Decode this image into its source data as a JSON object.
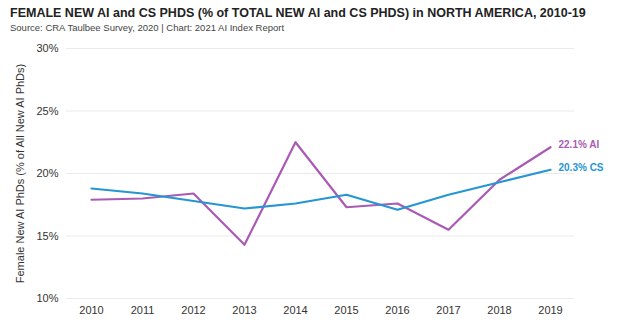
{
  "chart_data": {
    "type": "line",
    "title": "FEMALE NEW AI and CS PHDS (% of TOTAL NEW AI and CS PHDS) in NORTH AMERICA, 2010-19",
    "subtitle": "Source: CRA Taulbee Survey, 2020 | Chart: 2021 AI Index Report",
    "y_label": "Female New AI PhDs (% of All New AI PhDs)",
    "categories": [
      "2010",
      "2011",
      "2012",
      "2013",
      "2014",
      "2015",
      "2016",
      "2017",
      "2018",
      "2019"
    ],
    "series": [
      {
        "name": "AI",
        "color": "#a95bb4",
        "values": [
          17.9,
          18.0,
          18.4,
          14.3,
          22.5,
          17.3,
          17.6,
          15.5,
          19.5,
          22.1
        ]
      },
      {
        "name": "CS",
        "color": "#2596d1",
        "values": [
          18.8,
          18.4,
          17.8,
          17.2,
          17.6,
          18.3,
          17.1,
          18.3,
          19.3,
          20.3
        ]
      }
    ],
    "annotations": [
      {
        "text": "22.1% AI",
        "series": "AI"
      },
      {
        "text": "20.3% CS",
        "series": "CS"
      }
    ],
    "ylim": [
      10,
      30
    ],
    "yticks": [
      {
        "value": 10,
        "label": "10%"
      },
      {
        "value": 15,
        "label": "15%"
      },
      {
        "value": 20,
        "label": "20%"
      },
      {
        "value": 25,
        "label": "25%"
      },
      {
        "value": 30,
        "label": "30%"
      }
    ],
    "grid": true
  }
}
